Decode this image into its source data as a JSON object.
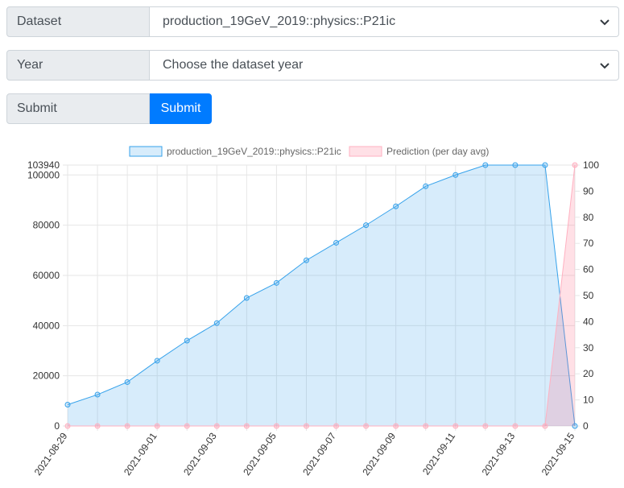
{
  "form": {
    "dataset_label": "Dataset",
    "dataset_value": "production_19GeV_2019::physics::P21ic",
    "year_label": "Year",
    "year_value": "Choose the dataset year",
    "submit_label": "Submit",
    "submit_button": "Submit"
  },
  "colors": {
    "series_fill": "rgba(54,162,235,0.2)",
    "series_line": "#36a2eb",
    "prediction_fill": "rgba(255,99,132,0.2)",
    "prediction_line": "#ffb1c1",
    "button": "#007bff"
  },
  "chart_data": {
    "type": "area",
    "legend_position": "top",
    "grid": true,
    "x_tick_labels": [
      "2021-08-29",
      "2021-09-01",
      "2021-09-03",
      "2021-09-05",
      "2021-09-07",
      "2021-09-09",
      "2021-09-11",
      "2021-09-13",
      "2021-09-15"
    ],
    "x": [
      "2021-08-29",
      "2021-08-30",
      "2021-08-31",
      "2021-09-01",
      "2021-09-02",
      "2021-09-03",
      "2021-09-04",
      "2021-09-05",
      "2021-09-06",
      "2021-09-07",
      "2021-09-08",
      "2021-09-09",
      "2021-09-10",
      "2021-09-11",
      "2021-09-12",
      "2021-09-13",
      "2021-09-14",
      "2021-09-15"
    ],
    "y_left": {
      "ylim": [
        0,
        103940
      ],
      "ticks": [
        0,
        20000,
        40000,
        60000,
        80000,
        100000
      ],
      "max_label": "103940"
    },
    "y_right": {
      "ylim": [
        0,
        100
      ],
      "ticks": [
        0,
        10,
        20,
        30,
        40,
        50,
        60,
        70,
        80,
        90,
        100
      ]
    },
    "series": [
      {
        "name": "production_19GeV_2019::physics::P21ic",
        "axis": "left",
        "values": [
          8500,
          12500,
          17500,
          26000,
          34000,
          41000,
          51000,
          57000,
          66000,
          73000,
          80000,
          87500,
          95500,
          100000,
          103940,
          103940,
          103940,
          0
        ]
      },
      {
        "name": "Prediction (per day avg)",
        "axis": "right",
        "values": [
          0,
          0,
          0,
          0,
          0,
          0,
          0,
          0,
          0,
          0,
          0,
          0,
          0,
          0,
          0,
          0,
          0,
          100
        ]
      }
    ]
  }
}
